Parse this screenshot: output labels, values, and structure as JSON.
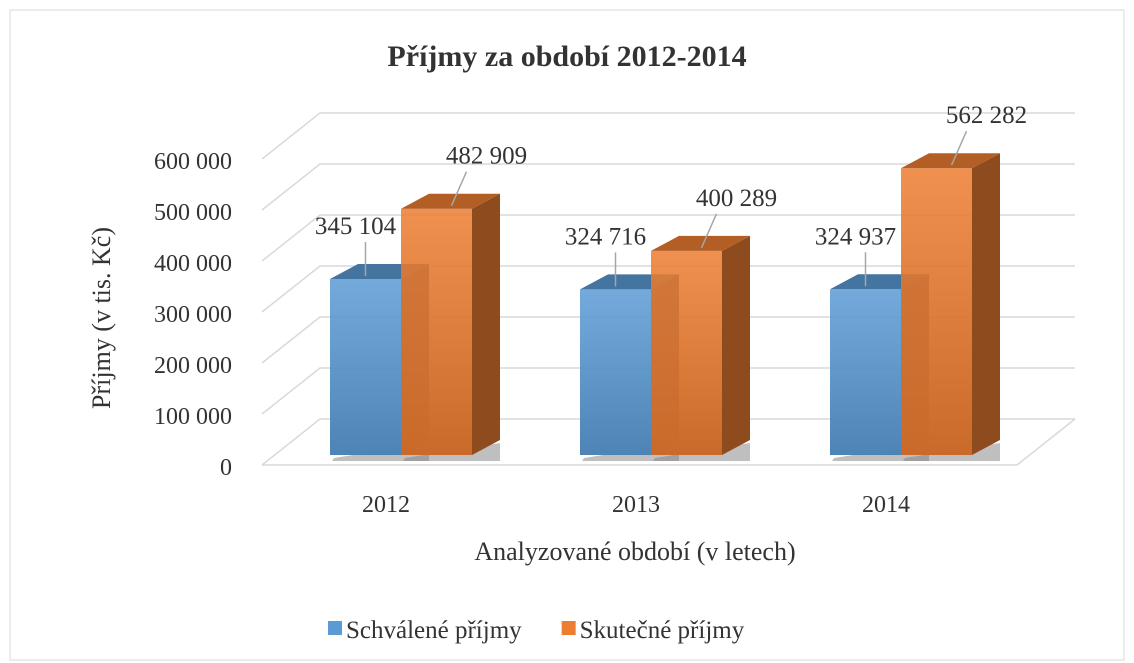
{
  "chart_data": {
    "type": "bar3d",
    "title": "Příjmy za období 2012-2014",
    "x_label": "Analyzované období (v letech)",
    "y_label": "Příjmy  (v tis. Kč)",
    "categories": [
      "2012",
      "2013",
      "2014"
    ],
    "series": [
      {
        "name": "Schválené příjmy",
        "color": "#5b9bd5",
        "values": [
          345104,
          324716,
          324937
        ],
        "value_labels": [
          "345 104",
          "324 716",
          "324 937"
        ]
      },
      {
        "name": "Skutečné příjmy",
        "color": "#ed7d31",
        "values": [
          482909,
          400289,
          562282
        ],
        "value_labels": [
          "482 909",
          "400 289",
          "562 282"
        ]
      }
    ],
    "ylim": [
      0,
      600000
    ],
    "yticks": [
      0,
      {
        "value": 100000,
        "label": "100 000"
      },
      {
        "value": 200000,
        "label": "200 000"
      },
      {
        "value": 300000,
        "label": "300 000"
      },
      {
        "value": 400000,
        "label": "400 000"
      },
      {
        "value": 500000,
        "label": "500 000"
      },
      {
        "value": 600000,
        "label": "600 000"
      }
    ],
    "grid": true,
    "legend": "bottom"
  }
}
